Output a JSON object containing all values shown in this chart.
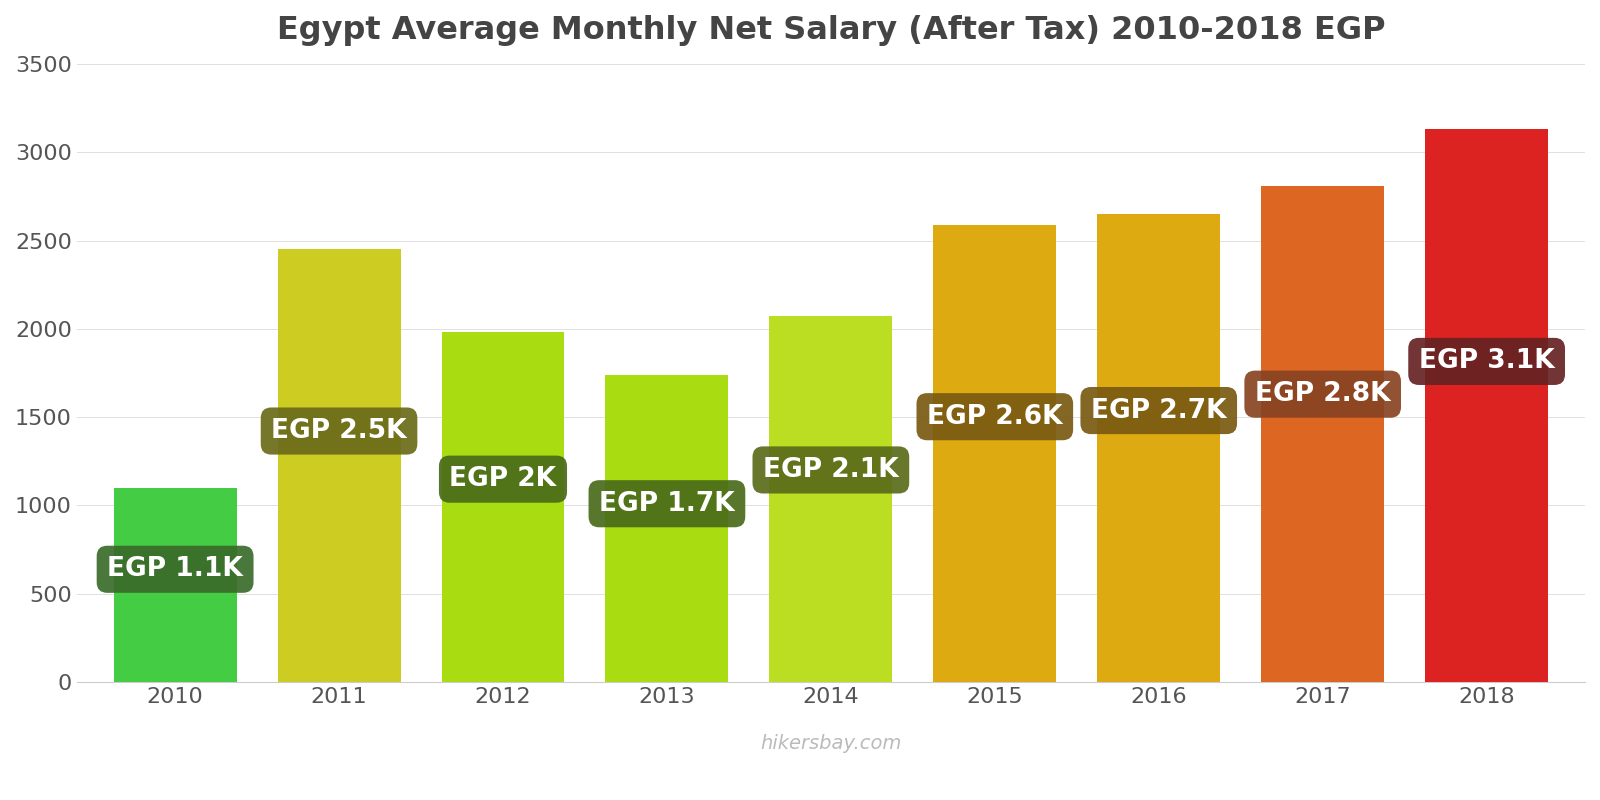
{
  "title": "Egypt Average Monthly Net Salary (After Tax) 2010-2018 EGP",
  "years": [
    2010,
    2011,
    2012,
    2013,
    2014,
    2015,
    2016,
    2017,
    2018
  ],
  "values": [
    1100,
    2450,
    1980,
    1740,
    2070,
    2590,
    2650,
    2810,
    3130
  ],
  "bar_colors": [
    "#44cc44",
    "#cccc22",
    "#aadd11",
    "#aadd11",
    "#bbdd22",
    "#ddaa11",
    "#ddaa11",
    "#dd6622",
    "#dd2222"
  ],
  "label_box_colors": [
    "#3a6b2a",
    "#6b6b1a",
    "#4a6b1a",
    "#4a6b1a",
    "#5a6b1a",
    "#7a5a11",
    "#7a5a11",
    "#884422",
    "#662222"
  ],
  "labels": [
    "EGP 1.1K",
    "EGP 2.5K",
    "EGP 2K",
    "EGP 1.7K",
    "EGP 2.1K",
    "EGP 2.6K",
    "EGP 2.7K",
    "EGP 2.8K",
    "EGP 3.1K"
  ],
  "label_text_color": "#ffffff",
  "ylim": [
    0,
    3500
  ],
  "yticks": [
    0,
    500,
    1000,
    1500,
    2000,
    2500,
    3000,
    3500
  ],
  "watermark": "hikersbay.com",
  "background_color": "#ffffff",
  "title_fontsize": 23,
  "tick_fontsize": 16,
  "label_fontsize": 19
}
